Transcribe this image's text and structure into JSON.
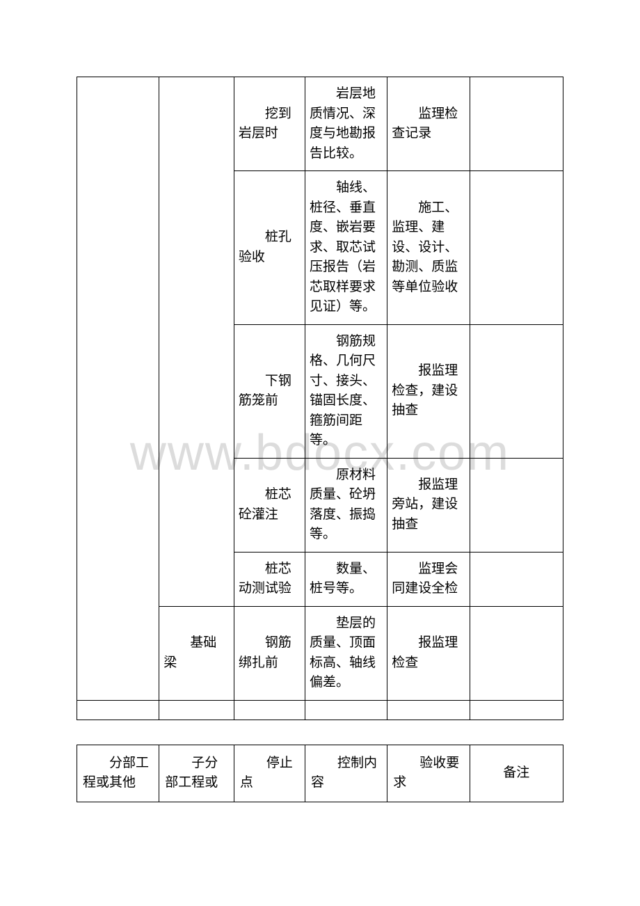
{
  "watermark": "www.bdocx.com",
  "table1": {
    "rows": [
      {
        "c3": "挖到岩层时",
        "c4": "岩层地质情况、深度与地勘报告比较。",
        "c5": "监理检查记录"
      },
      {
        "c3": "桩孔验收",
        "c4": "轴线、桩径、垂直度、嵌岩要求、取芯试压报告（岩芯取样要求见证）等。",
        "c5": "施工、监理、建设、设计、勘测、质监等单位验收"
      },
      {
        "c3": "下钢筋笼前",
        "c4": "钢筋规格、几何尺寸、接头、锚固长度、箍筋间距等。",
        "c5": "报监理检查，建设抽查"
      },
      {
        "c3": "桩芯砼灌注",
        "c4": "原材料质量、砼坍落度、振捣等。",
        "c5": "报监理旁站，建设抽查"
      },
      {
        "c3": "桩芯动测试验",
        "c4": "数量、桩号等。",
        "c5": "监理会同建设全检"
      },
      {
        "c2": "基础梁",
        "c3": "钢筋绑扎前",
        "c4": "垫层的质量、顶面标高、轴线偏差。",
        "c5": "报监理检查"
      }
    ]
  },
  "table2": {
    "headers": {
      "c1": "分部工程或其他",
      "c2": "子分部工程或",
      "c3": "停止点",
      "c4": "控制内容",
      "c5": "验收要求",
      "c6": "备注"
    }
  }
}
